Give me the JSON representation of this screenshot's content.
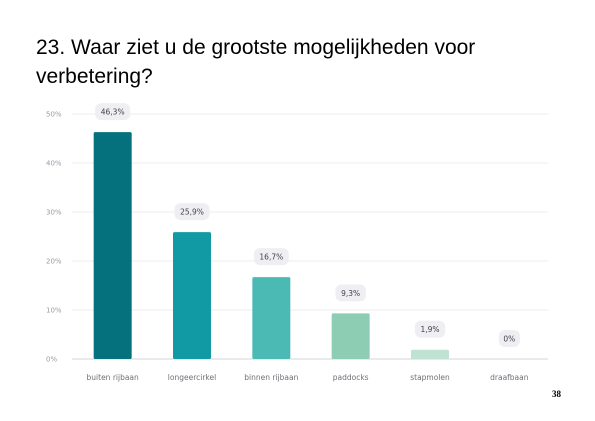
{
  "slide": {
    "title_line1": "23. Waar ziet u de grootste mogelijkheden voor",
    "title_line2": "verbetering?",
    "page_number": "38"
  },
  "chart_data": {
    "type": "bar",
    "categories": [
      "buiten rijbaan",
      "longeercirkel",
      "binnen rijbaan",
      "paddocks",
      "stapmolen",
      "draafbaan"
    ],
    "values": [
      46.3,
      25.9,
      16.7,
      9.3,
      1.9,
      0
    ],
    "data_labels": [
      "46,3%",
      "25,9%",
      "16,7%",
      "9,3%",
      "1,9%",
      "0%"
    ],
    "bar_colors": [
      "#04717c",
      "#119aa3",
      "#4bbab5",
      "#8ccdb3",
      "#bfe3d2",
      "#dff1e8"
    ],
    "yticks": [
      0,
      10,
      20,
      30,
      40,
      50
    ],
    "ytick_labels": [
      "0%",
      "10%",
      "20%",
      "30%",
      "40%",
      "50%"
    ],
    "ylim": [
      0,
      50
    ],
    "grid": true,
    "legend": "none",
    "title": "",
    "xlabel": "",
    "ylabel": ""
  }
}
